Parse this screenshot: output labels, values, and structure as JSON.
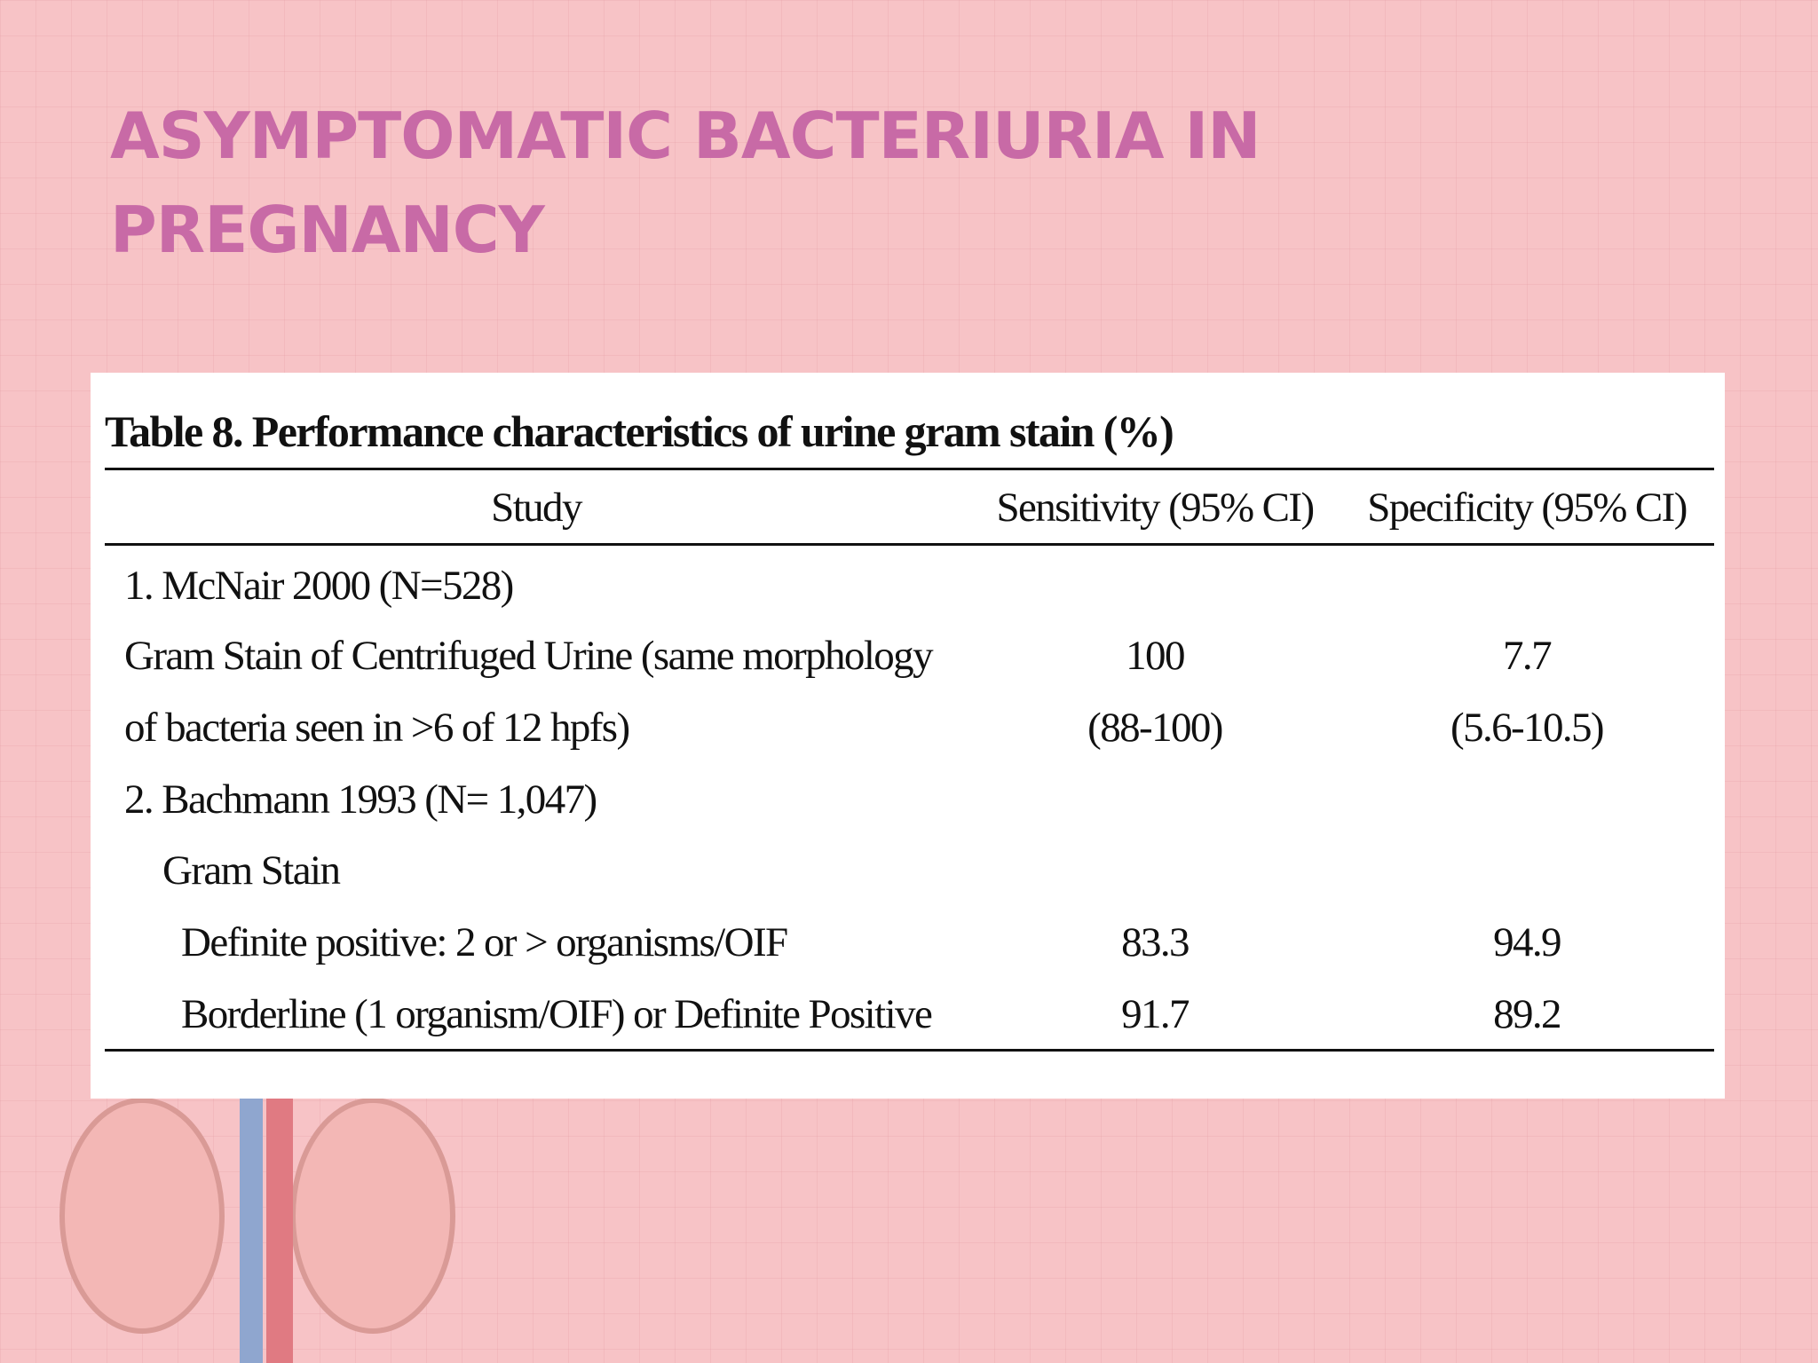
{
  "header": {
    "title": "ASYMPTOMATIC BACTERIURIA IN PREGNANCY"
  },
  "table": {
    "caption": "Table 8.  Performance characteristics of urine gram stain (%)",
    "columns": [
      "Study",
      "Sensitivity (95% CI)",
      "Specificity (95% CI)"
    ],
    "rows": [
      {
        "study": "1. McNair 2000 (N=528)"
      },
      {
        "study": "Gram Stain of Centrifuged Urine (same morphology",
        "sensitivity": "100",
        "specificity": "7.7"
      },
      {
        "study": "of bacteria seen in >6 of 12 hpfs)",
        "sensitivity": "(88-100)",
        "specificity": "(5.6-10.5)"
      },
      {
        "study": "2. Bachmann 1993 (N= 1,047)"
      },
      {
        "study": "Gram Stain"
      },
      {
        "study": "Definite positive: 2 or > organisms/OIF",
        "sensitivity": "83.3",
        "specificity": "94.9"
      },
      {
        "study": "Borderline (1 organism/OIF) or Definite Positive",
        "sensitivity": "91.7",
        "specificity": "89.2"
      }
    ]
  }
}
